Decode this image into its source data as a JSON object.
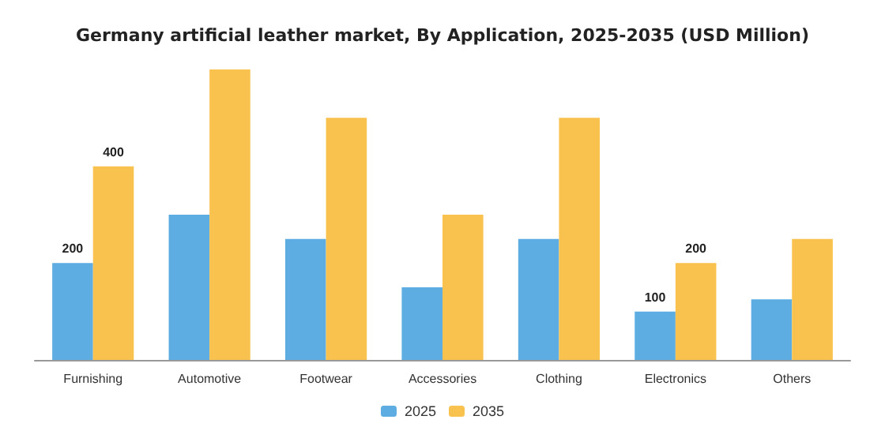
{
  "chart_data": {
    "type": "bar",
    "title": "Germany artificial leather market, By Application, 2025-2035 (USD Million)",
    "categories": [
      "Furnishing",
      "Automotive",
      "Footwear",
      "Accessories",
      "Clothing",
      "Electronics",
      "Others"
    ],
    "series": [
      {
        "name": "2025",
        "color": "#5dade2",
        "values": [
          200,
          300,
          250,
          150,
          250,
          100,
          125
        ],
        "value_labels": [
          "200",
          null,
          null,
          null,
          null,
          "100",
          null
        ]
      },
      {
        "name": "2035",
        "color": "#f9c24e",
        "values": [
          400,
          600,
          500,
          300,
          500,
          200,
          250
        ],
        "value_labels": [
          "400",
          null,
          null,
          null,
          null,
          "200",
          null
        ]
      }
    ],
    "legend": "bottom",
    "grid": false
  }
}
